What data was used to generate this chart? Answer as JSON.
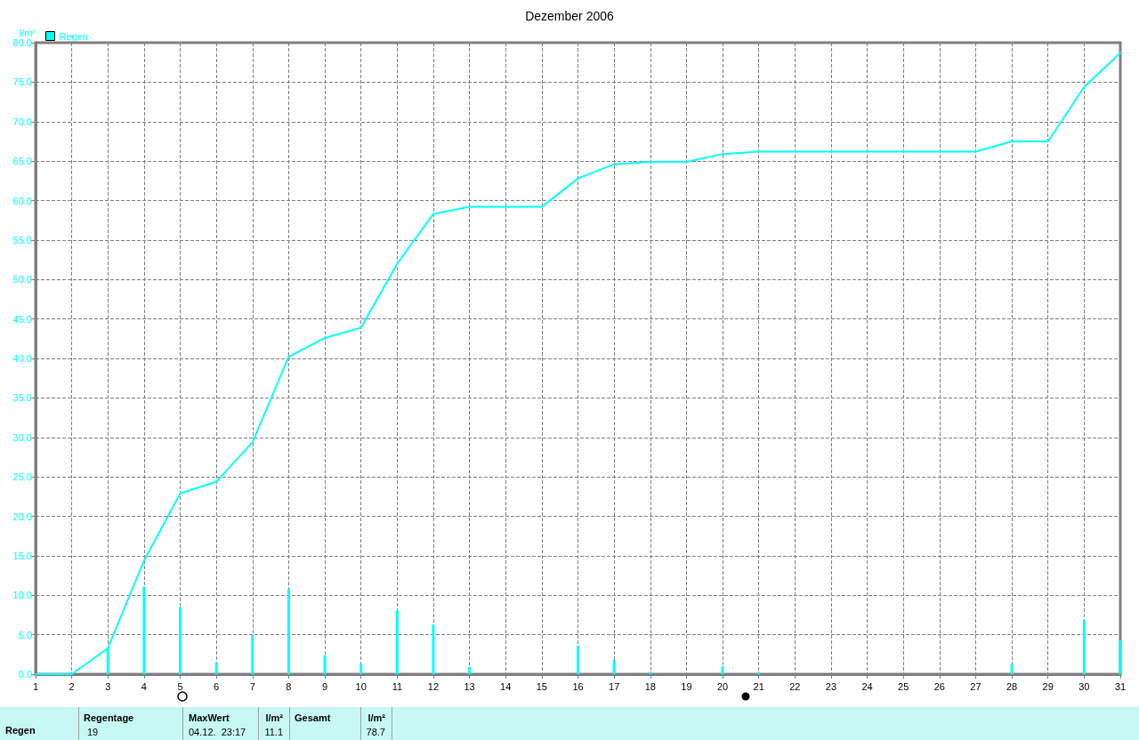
{
  "chart_data": {
    "type": "line",
    "title": "Dezember 2006",
    "ylabel": "l/m²",
    "x": [
      1,
      2,
      3,
      4,
      5,
      6,
      7,
      8,
      9,
      10,
      11,
      12,
      13,
      14,
      15,
      16,
      17,
      18,
      19,
      20,
      21,
      22,
      23,
      24,
      25,
      26,
      27,
      28,
      29,
      30,
      31
    ],
    "series": [
      {
        "name": "Regen",
        "color": "#00ffff",
        "values": [
          0,
          0,
          3.3,
          14.4,
          22.9,
          24.4,
          29.4,
          40.2,
          42.6,
          43.9,
          52.0,
          58.3,
          59.2,
          59.2,
          59.2,
          62.8,
          64.6,
          64.9,
          64.9,
          65.9,
          66.2,
          66.2,
          66.2,
          66.2,
          66.2,
          66.2,
          66.2,
          67.5,
          67.5,
          74.4,
          78.7
        ]
      },
      {
        "type": "bar",
        "color": "#00ffff",
        "values": [
          null,
          null,
          3.3,
          11.1,
          8.5,
          1.5,
          5.0,
          10.8,
          2.4,
          1.3,
          8.1,
          6.3,
          0.9,
          null,
          null,
          3.6,
          1.8,
          0.3,
          null,
          1.0,
          0.3,
          null,
          null,
          null,
          null,
          null,
          null,
          1.3,
          null,
          6.9,
          4.3
        ]
      }
    ],
    "xlim": [
      1,
      31
    ],
    "xticks": [
      1,
      2,
      3,
      4,
      5,
      6,
      7,
      8,
      9,
      10,
      11,
      12,
      13,
      14,
      15,
      16,
      17,
      18,
      19,
      20,
      21,
      22,
      23,
      24,
      25,
      26,
      27,
      28,
      29,
      30,
      31
    ],
    "ylim": [
      0,
      80
    ],
    "yticks": [
      {
        "value": 0,
        "label": "0.0"
      },
      {
        "value": 5,
        "label": "5.0"
      },
      {
        "value": 10,
        "label": "10.0"
      },
      {
        "value": 15,
        "label": "15.0"
      },
      {
        "value": 20,
        "label": "20.0"
      },
      {
        "value": 25,
        "label": "25.0"
      },
      {
        "value": 30,
        "label": "30.0"
      },
      {
        "value": 35,
        "label": "35.0"
      },
      {
        "value": 40,
        "label": "40.0"
      },
      {
        "value": 45,
        "label": "45.0"
      },
      {
        "value": 50,
        "label": "50.0"
      },
      {
        "value": 55,
        "label": "55.0"
      },
      {
        "value": 60,
        "label": "60.0"
      },
      {
        "value": 65,
        "label": "65.0"
      },
      {
        "value": 70,
        "label": "70.0"
      },
      {
        "value": 75,
        "label": "75.0"
      },
      {
        "value": 80,
        "label": "80.0"
      }
    ],
    "grid": true,
    "legend": "top left",
    "marker": "none",
    "line_style": "solid",
    "annotations": [
      "Regen",
      "Regentage",
      "19",
      "MaxWert",
      "04.12.  23:17",
      "l/m²",
      "11.1",
      "Gesamt",
      "l/m²",
      "78.7"
    ]
  }
}
